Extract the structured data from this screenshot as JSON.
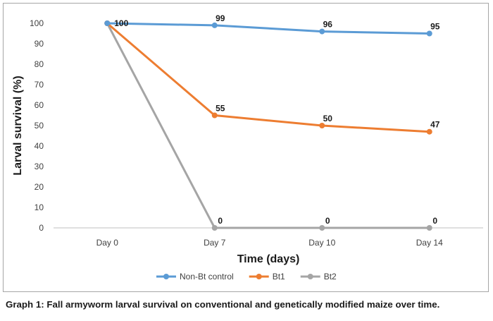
{
  "caption": "Graph 1: Fall armyworm larval survival on conventional and genetically modified maize over time.",
  "chart_data": {
    "type": "line",
    "title": "",
    "xlabel": "Time (days)",
    "ylabel": "Larval survival (%)",
    "categories": [
      "Day 0",
      "Day 7",
      "Day 10",
      "Day 14"
    ],
    "ylim": [
      0,
      100
    ],
    "yticks": [
      0,
      10,
      20,
      30,
      40,
      50,
      60,
      70,
      80,
      90,
      100
    ],
    "grid": false,
    "legend_position": "bottom",
    "series": [
      {
        "name": "Non-Bt control",
        "color": "#5b9bd5",
        "values": [
          100,
          99,
          96,
          95
        ],
        "labels": [
          "100",
          "99",
          "96",
          "95"
        ]
      },
      {
        "name": "Bt1",
        "color": "#ed7d31",
        "values": [
          100,
          55,
          50,
          47
        ],
        "labels": [
          "",
          "55",
          "50",
          "47"
        ]
      },
      {
        "name": "Bt2",
        "color": "#a5a5a5",
        "values": [
          100,
          0,
          0,
          0
        ],
        "labels": [
          "",
          "0",
          "0",
          "0"
        ]
      }
    ]
  }
}
